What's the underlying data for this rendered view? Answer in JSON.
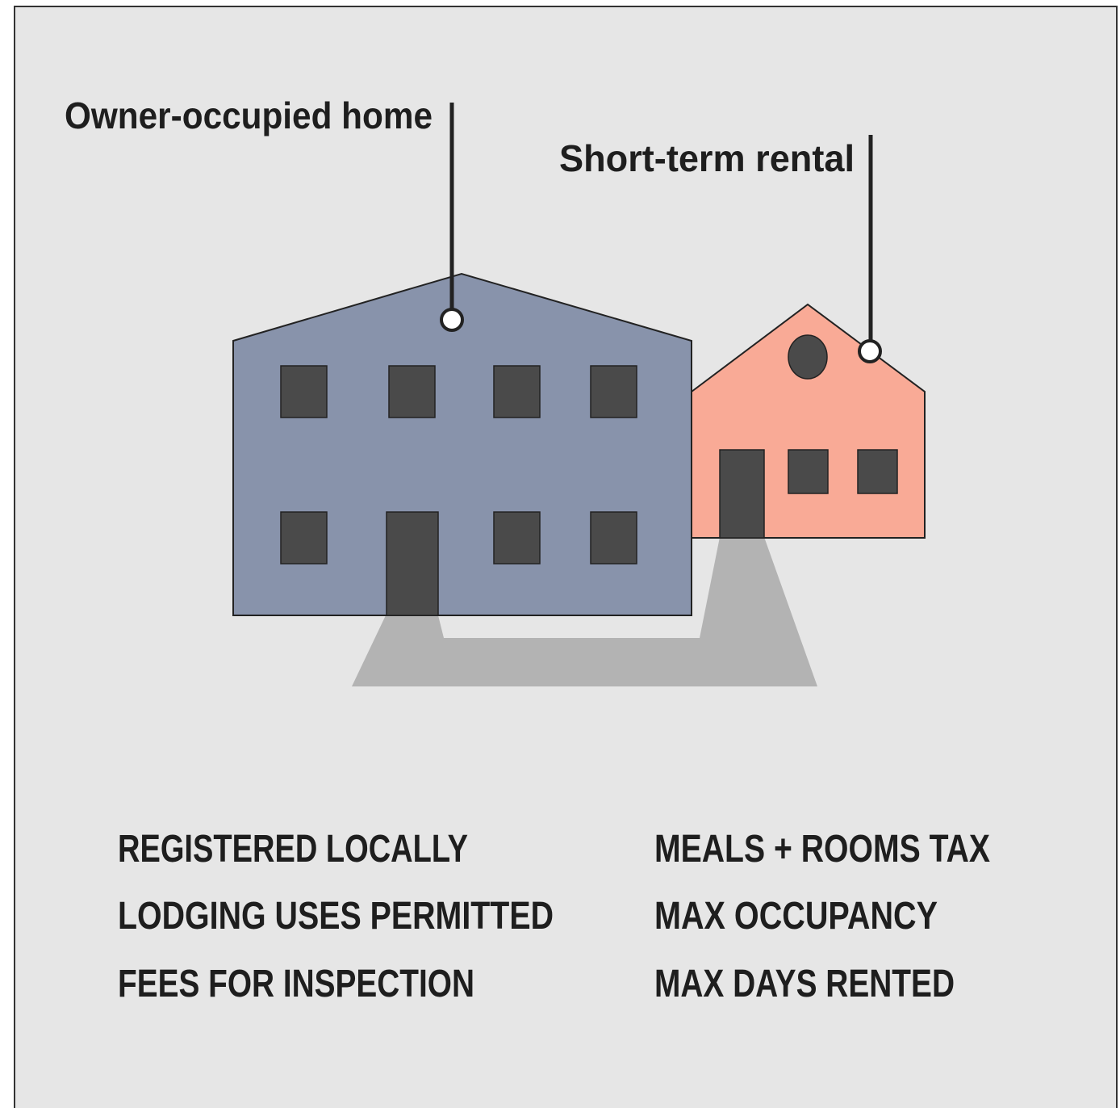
{
  "labels": {
    "owner": "Owner-occupied home",
    "rental": "Short-term rental"
  },
  "requirements": {
    "left": [
      "REGISTERED LOCALLY",
      "LODGING USES PERMITTED",
      "FEES FOR INSPECTION"
    ],
    "right": [
      "MEALS + ROOMS TAX",
      "MAX OCCUPANCY",
      "MAX DAYS RENTED"
    ]
  }
}
